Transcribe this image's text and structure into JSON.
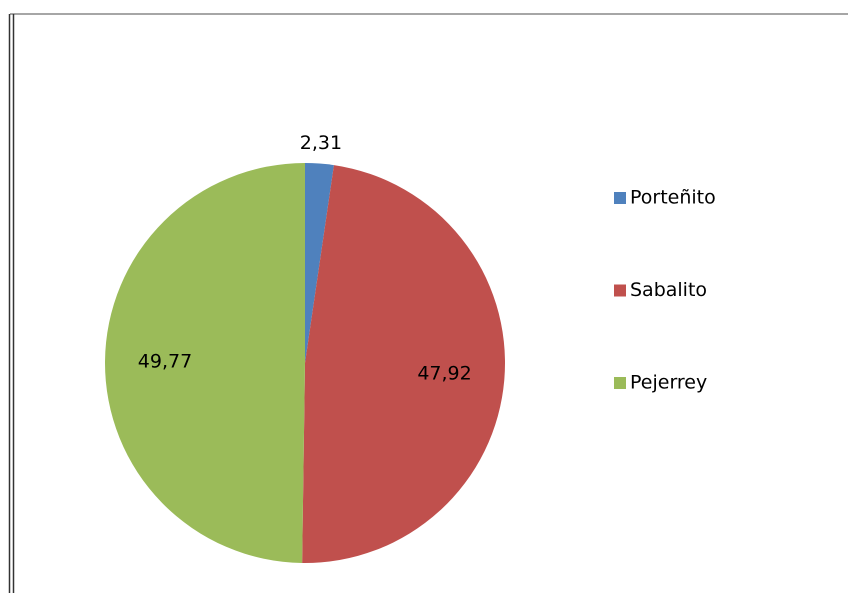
{
  "chart_data": {
    "type": "pie",
    "categories": [
      "Porteñito",
      "Sabalito",
      "Pejerrey"
    ],
    "values": [
      2.31,
      47.92,
      49.77
    ],
    "value_labels": [
      "2,31",
      "47,92",
      "49,77"
    ],
    "colors": [
      "#4f81bd",
      "#c0504d",
      "#9bbb59"
    ],
    "legend": "right"
  }
}
